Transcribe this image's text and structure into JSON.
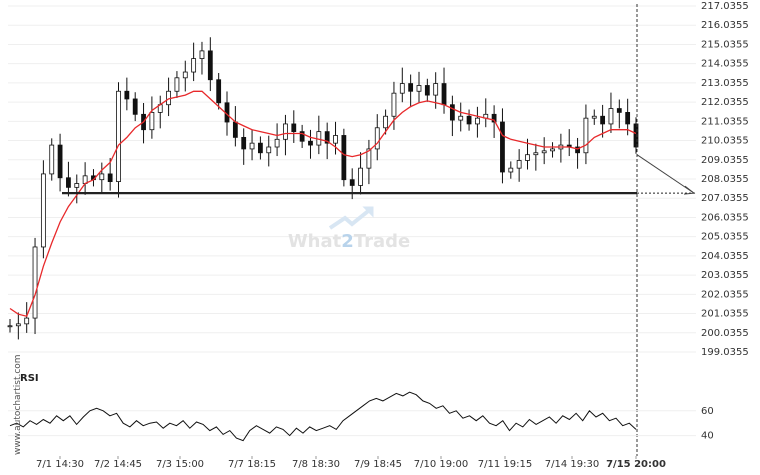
{
  "chart_data": [
    {
      "type": "candlestick",
      "title": "",
      "xlabel": "",
      "ylabel": "",
      "ylim": [
        199.0355,
        217.0355
      ],
      "yticks": [
        "217.0355",
        "216.0355",
        "215.0355",
        "214.0355",
        "213.0355",
        "212.0355",
        "211.0355",
        "210.0355",
        "209.0355",
        "208.0355",
        "207.0355",
        "206.0355",
        "205.0355",
        "204.0355",
        "203.0355",
        "202.0355",
        "201.0355",
        "200.0355",
        "199.0355"
      ],
      "xticks": [
        "7/1 14:30",
        "7/2 14:45",
        "7/3 15:00",
        "7/7 18:15",
        "7/8 18:30",
        "7/9 18:45",
        "7/10 19:00",
        "7/11 19:15",
        "7/14 19:30",
        "7/15 20:00"
      ],
      "support_level": 207.3,
      "series": [
        {
          "name": "Price",
          "kind": "candles",
          "closes": [
            200.4,
            200.5,
            200.8,
            204.5,
            208.3,
            209.8,
            208.1,
            207.6,
            207.8,
            208.2,
            208.0,
            208.3,
            207.9,
            212.6,
            212.2,
            211.4,
            210.6,
            211.5,
            211.9,
            212.6,
            213.3,
            213.6,
            214.3,
            214.7,
            213.2,
            212.0,
            211.0,
            210.2,
            209.6,
            209.9,
            209.4,
            209.7,
            210.1,
            210.9,
            210.5,
            210.0,
            209.8,
            210.5,
            209.9,
            210.3,
            208.0,
            207.7,
            208.6,
            209.6,
            210.7,
            211.3,
            212.5,
            213.0,
            212.6,
            212.9,
            212.4,
            213.0,
            211.9,
            211.1,
            211.3,
            210.9,
            211.2,
            211.4,
            211.0,
            208.4,
            208.6,
            209.0,
            209.3,
            209.4,
            209.5,
            209.6,
            209.8,
            209.7,
            209.4,
            211.2,
            211.3,
            210.9,
            211.7,
            211.5,
            210.9,
            209.7
          ],
          "ylim_hint": "price"
        },
        {
          "name": "Moving average",
          "kind": "line",
          "color": "#e8292b",
          "values": [
            201.3,
            201.0,
            200.9,
            202.0,
            203.5,
            204.7,
            205.8,
            206.6,
            207.2,
            207.8,
            208.0,
            208.5,
            208.9,
            209.8,
            210.2,
            210.7,
            211.0,
            211.6,
            211.9,
            212.2,
            212.3,
            212.4,
            212.6,
            212.6,
            212.2,
            211.8,
            211.4,
            211.0,
            210.8,
            210.6,
            210.5,
            210.4,
            210.3,
            210.4,
            210.4,
            210.4,
            210.2,
            210.1,
            210.0,
            209.7,
            209.3,
            209.2,
            209.3,
            209.5,
            209.9,
            210.5,
            211.1,
            211.5,
            211.8,
            212.0,
            212.1,
            212.0,
            211.9,
            211.7,
            211.5,
            211.4,
            211.3,
            211.2,
            211.1,
            210.3,
            210.1,
            210.0,
            209.9,
            209.8,
            209.7,
            209.7,
            209.7,
            209.7,
            209.6,
            209.8,
            210.2,
            210.4,
            210.6,
            210.6,
            210.6,
            210.4
          ]
        },
        {
          "name": "Projection",
          "kind": "arrow",
          "color": "#444444",
          "from": 209.3,
          "to": 207.3
        }
      ]
    },
    {
      "type": "line",
      "title": "RSI",
      "xlabel": "",
      "ylabel": "",
      "ylim": [
        30,
        80
      ],
      "yticks": [
        "60",
        "40"
      ],
      "series": [
        {
          "name": "RSI",
          "color": "#111111",
          "values": [
            48,
            50,
            47,
            52,
            49,
            53,
            50,
            56,
            52,
            56,
            49,
            55,
            60,
            62,
            60,
            56,
            58,
            50,
            47,
            52,
            48,
            50,
            51,
            46,
            50,
            48,
            52,
            46,
            51,
            49,
            44,
            47,
            41,
            44,
            38,
            36,
            44,
            48,
            45,
            42,
            47,
            45,
            40,
            46,
            42,
            47,
            44,
            46,
            48,
            45,
            52,
            56,
            60,
            64,
            68,
            70,
            68,
            71,
            74,
            72,
            75,
            73,
            68,
            66,
            62,
            64,
            58,
            60,
            54,
            56,
            52,
            56,
            50,
            48,
            52,
            44,
            50,
            47,
            53,
            49,
            52,
            55,
            50,
            56,
            53,
            58,
            52,
            60,
            55,
            58,
            52,
            54,
            48,
            50,
            45
          ]
        }
      ]
    }
  ],
  "watermark": {
    "part1": "What",
    "part2": "2",
    "part3": "Trade"
  },
  "credit": "www.autochartist.com",
  "colors": {
    "ma": "#e8292b",
    "candle": "#111111",
    "support": "#222222",
    "grid": "#efefef",
    "rsi": "#111111"
  }
}
